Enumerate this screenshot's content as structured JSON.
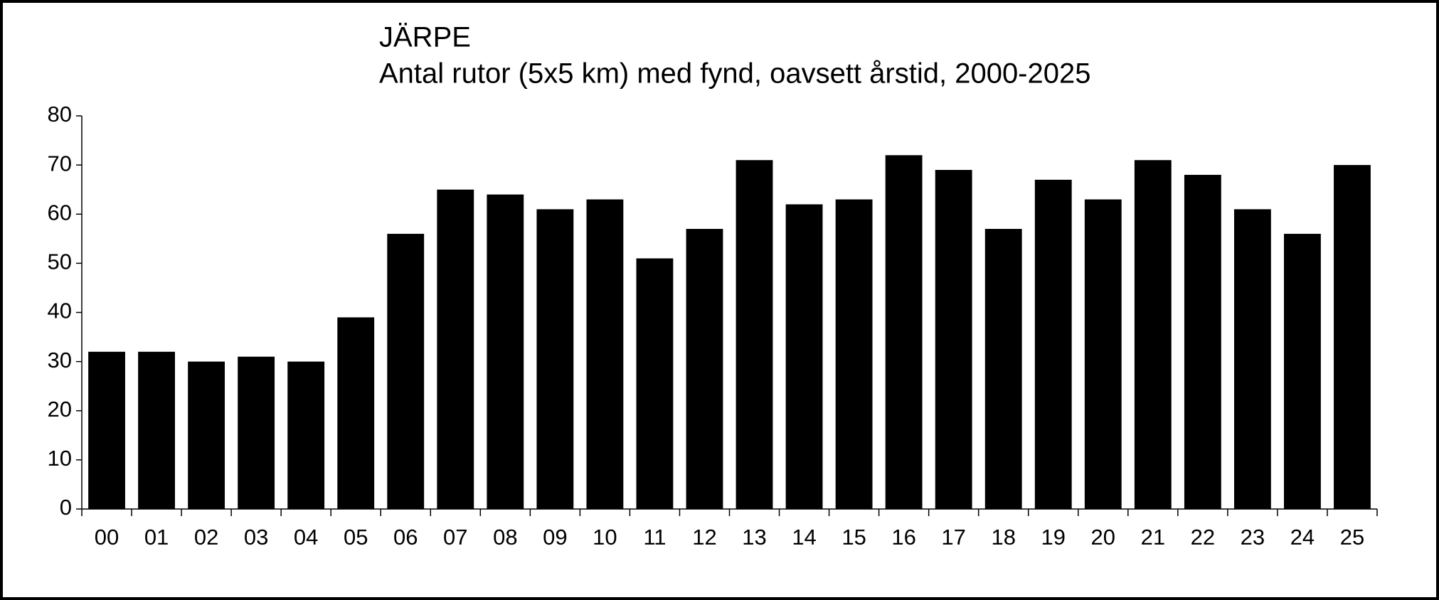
{
  "chart_data": {
    "type": "bar",
    "title": "JÄRPE",
    "subtitle": "Antal rutor (5x5 km) med fynd, oavsett årstid, 2000-2025",
    "categories": [
      "00",
      "01",
      "02",
      "03",
      "04",
      "05",
      "06",
      "07",
      "08",
      "09",
      "10",
      "11",
      "12",
      "13",
      "14",
      "15",
      "16",
      "17",
      "18",
      "19",
      "20",
      "21",
      "22",
      "23",
      "24",
      "25"
    ],
    "values": [
      32,
      32,
      30,
      31,
      30,
      39,
      56,
      65,
      64,
      61,
      63,
      51,
      57,
      71,
      62,
      63,
      72,
      69,
      57,
      67,
      63,
      71,
      68,
      61,
      56,
      70
    ],
    "color": "#000000",
    "ylim": [
      0,
      80
    ],
    "yticks": [
      0,
      10,
      20,
      30,
      40,
      50,
      60,
      70,
      80
    ],
    "grid": false
  }
}
